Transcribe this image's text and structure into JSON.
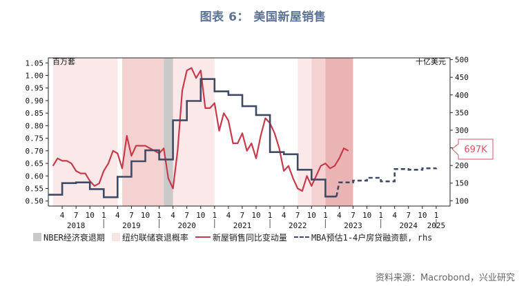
{
  "title": "图表 6： 美国新屋销售",
  "source": "资料来源：Macrobond，兴业研究",
  "chart_data": {
    "type": "line",
    "left_axis_unit": "百万套",
    "right_axis_unit": "十亿美元",
    "left_ylim": [
      0.48,
      1.07
    ],
    "left_ticks": [
      "0.50",
      "0.55",
      "0.60",
      "0.65",
      "0.70",
      "0.75",
      "0.80",
      "0.85",
      "0.90",
      "0.95",
      "1.00",
      "1.05"
    ],
    "right_ylim": [
      85,
      505
    ],
    "right_ticks": [
      "100",
      "150",
      "200",
      "250",
      "300",
      "350",
      "400",
      "450",
      "500"
    ],
    "x_month_ticks": [
      "4",
      "7",
      "10",
      "1",
      "4",
      "7",
      "10",
      "1",
      "4",
      "7",
      "10",
      "1",
      "4",
      "7",
      "10",
      "1",
      "4",
      "7",
      "10",
      "1",
      "4",
      "7",
      "10",
      "1",
      "4",
      "7",
      "10",
      "1"
    ],
    "x_year_labels": [
      "2018",
      "2019",
      "2020",
      "2021",
      "2022",
      "2023",
      "2024",
      "2025"
    ],
    "callout": "697K",
    "legend": {
      "recession": "NBER经济衰退期",
      "ny_fed": "纽约联储衰退概率",
      "sales": "新屋销售同比变动量",
      "mba": "MBA预估1-4户房贷融资额, rhs"
    },
    "colors": {
      "sales": "#c8394a",
      "mba": "#3d4a66",
      "recession": "#c9c9c9",
      "prob_light": "#fbe9e9",
      "prob_mid": "#f5d2d2",
      "prob_dark": "#ebb4b4",
      "callout": "#d9515e"
    },
    "recession_period": [
      "2020-02",
      "2020-04"
    ],
    "ny_fed_shading": [
      {
        "start": "2018-02",
        "end": "2019-04",
        "level": "light"
      },
      {
        "start": "2019-05",
        "end": "2020-02",
        "level": "mid"
      },
      {
        "start": "2020-04",
        "end": "2021-01",
        "level": "light"
      },
      {
        "start": "2022-07",
        "end": "2022-10",
        "level": "light"
      },
      {
        "start": "2022-10",
        "end": "2023-01",
        "level": "mid"
      },
      {
        "start": "2023-01",
        "end": "2023-07",
        "level": "dark"
      }
    ],
    "series": [
      {
        "name": "新屋销售同比变动量",
        "axis": "left",
        "x": [
          "2018-02",
          "2018-03",
          "2018-04",
          "2018-05",
          "2018-06",
          "2018-07",
          "2018-08",
          "2018-09",
          "2018-10",
          "2018-11",
          "2018-12",
          "2019-01",
          "2019-02",
          "2019-03",
          "2019-04",
          "2019-05",
          "2019-06",
          "2019-07",
          "2019-08",
          "2019-09",
          "2019-10",
          "2019-11",
          "2019-12",
          "2020-01",
          "2020-02",
          "2020-03",
          "2020-04",
          "2020-05",
          "2020-06",
          "2020-07",
          "2020-08",
          "2020-09",
          "2020-10",
          "2020-11",
          "2020-12",
          "2021-01",
          "2021-02",
          "2021-03",
          "2021-04",
          "2021-05",
          "2021-06",
          "2021-07",
          "2021-08",
          "2021-09",
          "2021-10",
          "2021-11",
          "2021-12",
          "2022-01",
          "2022-02",
          "2022-03",
          "2022-04",
          "2022-05",
          "2022-06",
          "2022-07",
          "2022-08",
          "2022-09",
          "2022-10",
          "2022-11",
          "2022-12",
          "2023-01",
          "2023-02",
          "2023-03",
          "2023-04",
          "2023-05",
          "2023-06"
        ],
        "values": [
          0.64,
          0.67,
          0.66,
          0.66,
          0.65,
          0.62,
          0.61,
          0.61,
          0.58,
          0.56,
          0.57,
          0.62,
          0.65,
          0.7,
          0.69,
          0.63,
          0.76,
          0.68,
          0.72,
          0.72,
          0.72,
          0.71,
          0.7,
          0.69,
          0.71,
          0.59,
          0.55,
          0.7,
          0.94,
          1.02,
          1.03,
          0.99,
          1.02,
          0.87,
          0.87,
          0.89,
          0.78,
          0.85,
          0.82,
          0.73,
          0.73,
          0.77,
          0.7,
          0.73,
          0.67,
          0.76,
          0.83,
          0.81,
          0.77,
          0.71,
          0.62,
          0.64,
          0.59,
          0.55,
          0.54,
          0.6,
          0.56,
          0.6,
          0.64,
          0.65,
          0.63,
          0.64,
          0.67,
          0.71,
          0.7
        ]
      },
      {
        "name": "MBA预估1-4户房贷融资额, rhs",
        "axis": "right",
        "x": [
          "2018-01",
          "2018-04",
          "2018-07",
          "2018-10",
          "2019-01",
          "2019-04",
          "2019-07",
          "2019-10",
          "2020-01",
          "2020-04",
          "2020-07",
          "2020-10",
          "2021-01",
          "2021-04",
          "2021-07",
          "2021-10",
          "2022-01",
          "2022-04",
          "2022-07",
          "2022-10",
          "2023-01",
          "2023-04",
          "2023-07",
          "2023-10",
          "2024-01",
          "2024-04",
          "2024-07",
          "2024-10",
          "2025-01"
        ],
        "values": [
          117,
          150,
          152,
          133,
          110,
          168,
          212,
          243,
          217,
          328,
          383,
          445,
          410,
          400,
          368,
          343,
          238,
          232,
          188,
          160,
          112,
          152,
          157,
          165,
          155,
          190,
          188,
          192,
          193
        ],
        "forecast_from": "2023-04"
      }
    ]
  }
}
